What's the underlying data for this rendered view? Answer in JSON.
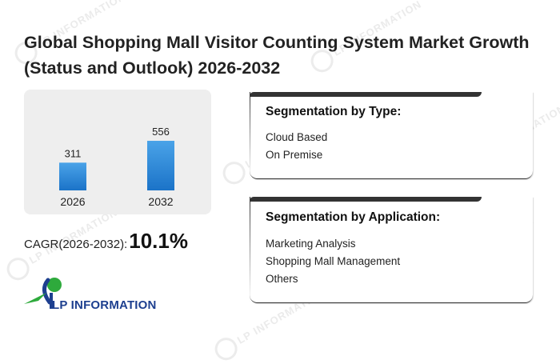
{
  "title": "Global Shopping Mall Visitor Counting System Market Growth (Status and Outlook) 2026-2032",
  "watermark_text": "LP INFORMATION",
  "chart_data": {
    "type": "bar",
    "categories": [
      "2026",
      "2032"
    ],
    "values": [
      311,
      556
    ],
    "title": "",
    "xlabel": "",
    "ylabel": "",
    "grid": false,
    "bar_color_top": "#4aa3e8",
    "bar_color_bottom": "#1b73c8"
  },
  "cagr": {
    "label": "CAGR(2026-2032):",
    "value": "10.1%"
  },
  "logo": {
    "text": "LP INFORMATION",
    "color_primary": "#1d3f8f",
    "color_accent": "#2eaa3c"
  },
  "segments": {
    "type": {
      "title": "Segmentation by Type:",
      "items": [
        "Cloud Based",
        "On Premise"
      ]
    },
    "application": {
      "title": "Segmentation by Application:",
      "items": [
        "Marketing Analysis",
        "Shopping Mall Management",
        "Others"
      ]
    }
  }
}
